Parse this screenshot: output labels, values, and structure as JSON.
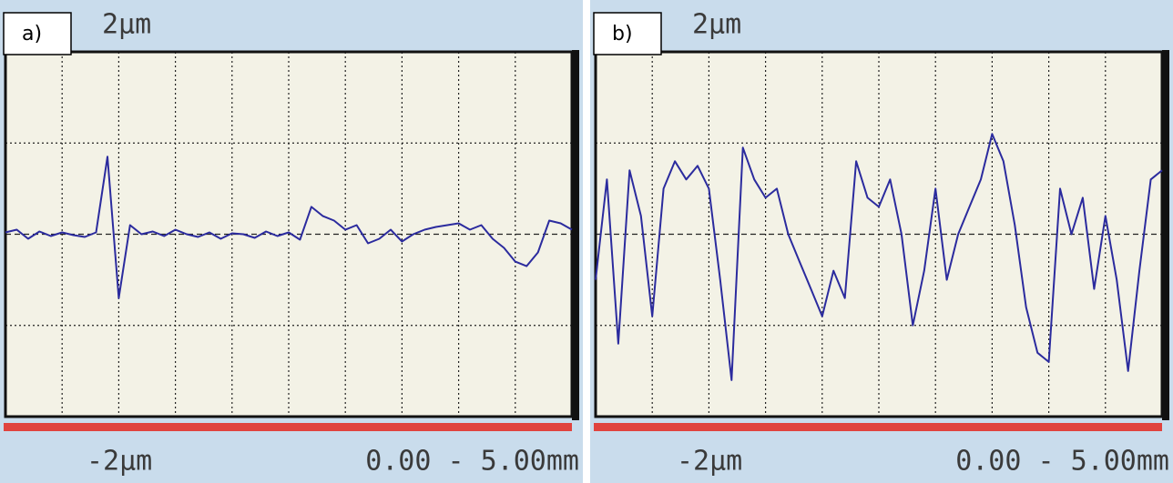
{
  "chart_data": [
    {
      "type": "line",
      "label": "a)",
      "range_label": "0.00 - 5.00mm",
      "color": "#2b2b9e",
      "grid": true,
      "xlim": [
        0,
        5
      ],
      "ylim": [
        -2,
        2
      ],
      "xticks": [
        {
          "value": 0.5,
          "label": null
        },
        {
          "value": 1,
          "label": null
        },
        {
          "value": 1.5,
          "label": null
        },
        {
          "value": 2,
          "label": null
        },
        {
          "value": 2.5,
          "label": null
        },
        {
          "value": 3,
          "label": null
        },
        {
          "value": 3.5,
          "label": null
        },
        {
          "value": 4,
          "label": null
        },
        {
          "value": 4.5,
          "label": null
        }
      ],
      "yticks": [
        {
          "value": 2,
          "label": "2µm"
        },
        {
          "value": 1,
          "label": null
        },
        {
          "value": 0,
          "label": null
        },
        {
          "value": -1,
          "label": null
        },
        {
          "value": -2,
          "label": "-2µm"
        }
      ],
      "x": [
        0,
        0.1,
        0.2,
        0.3,
        0.4,
        0.5,
        0.6,
        0.7,
        0.8,
        0.9,
        1,
        1.1,
        1.2,
        1.3,
        1.4,
        1.5,
        1.6,
        1.7,
        1.8,
        1.9,
        2,
        2.1,
        2.2,
        2.3,
        2.4,
        2.5,
        2.6,
        2.7,
        2.8,
        2.9,
        3,
        3.1,
        3.2,
        3.3,
        3.4,
        3.5,
        3.6,
        3.7,
        3.8,
        3.9,
        4,
        4.1,
        4.2,
        4.3,
        4.4,
        4.5,
        4.6,
        4.7,
        4.8,
        4.9,
        5
      ],
      "values": [
        0.02,
        0.05,
        -0.05,
        0.03,
        -0.02,
        0.02,
        -0.01,
        -0.03,
        0.02,
        0.85,
        -0.7,
        0.1,
        0.0,
        0.03,
        -0.02,
        0.05,
        0.0,
        -0.03,
        0.02,
        -0.05,
        0.01,
        0.0,
        -0.04,
        0.03,
        -0.02,
        0.02,
        -0.06,
        0.3,
        0.2,
        0.15,
        0.05,
        0.1,
        -0.1,
        -0.05,
        0.05,
        -0.08,
        0.0,
        0.05,
        0.08,
        0.1,
        0.12,
        0.05,
        0.1,
        -0.05,
        -0.15,
        -0.3,
        -0.35,
        -0.2,
        0.15,
        0.12,
        0.05
      ]
    },
    {
      "type": "line",
      "label": "b)",
      "range_label": "0.00 - 5.00mm",
      "color": "#2b2b9e",
      "grid": true,
      "xlim": [
        0,
        5
      ],
      "ylim": [
        -2,
        2
      ],
      "xticks": [
        {
          "value": 0.5,
          "label": null
        },
        {
          "value": 1,
          "label": null
        },
        {
          "value": 1.5,
          "label": null
        },
        {
          "value": 2,
          "label": null
        },
        {
          "value": 2.5,
          "label": null
        },
        {
          "value": 3,
          "label": null
        },
        {
          "value": 3.5,
          "label": null
        },
        {
          "value": 4,
          "label": null
        },
        {
          "value": 4.5,
          "label": null
        }
      ],
      "yticks": [
        {
          "value": 2,
          "label": "2µm"
        },
        {
          "value": 1,
          "label": null
        },
        {
          "value": 0,
          "label": null
        },
        {
          "value": -1,
          "label": null
        },
        {
          "value": -2,
          "label": "-2µm"
        }
      ],
      "x": [
        0,
        0.1,
        0.2,
        0.3,
        0.4,
        0.5,
        0.6,
        0.7,
        0.8,
        0.9,
        1,
        1.1,
        1.2,
        1.3,
        1.4,
        1.5,
        1.6,
        1.7,
        1.8,
        1.9,
        2,
        2.1,
        2.2,
        2.3,
        2.4,
        2.5,
        2.6,
        2.7,
        2.8,
        2.9,
        3,
        3.1,
        3.2,
        3.3,
        3.4,
        3.5,
        3.6,
        3.7,
        3.8,
        3.9,
        4,
        4.1,
        4.2,
        4.3,
        4.4,
        4.5,
        4.6,
        4.7,
        4.8,
        4.9,
        5
      ],
      "values": [
        -0.5,
        0.6,
        -1.2,
        0.7,
        0.2,
        -0.9,
        0.5,
        0.8,
        0.6,
        0.75,
        0.5,
        -0.5,
        -1.6,
        0.95,
        0.6,
        0.4,
        0.5,
        0.0,
        -0.3,
        -0.6,
        -0.9,
        -0.4,
        -0.7,
        0.8,
        0.4,
        0.3,
        0.6,
        0.0,
        -1.0,
        -0.4,
        0.5,
        -0.5,
        0.0,
        0.3,
        0.6,
        1.1,
        0.8,
        0.1,
        -0.8,
        -1.3,
        -1.4,
        0.5,
        0.0,
        0.4,
        -0.6,
        0.2,
        -0.5,
        -1.5,
        -0.4,
        0.6,
        0.7
      ]
    }
  ]
}
